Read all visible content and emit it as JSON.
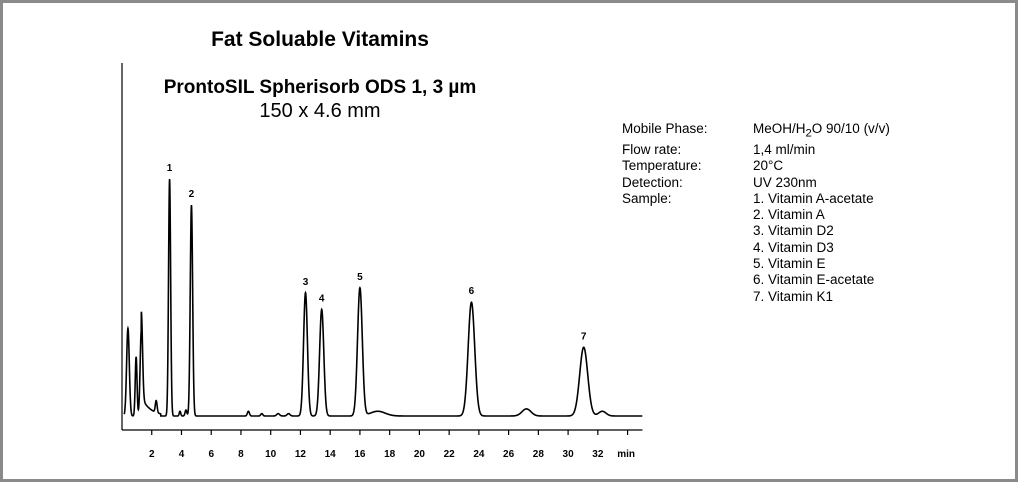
{
  "header": {
    "title": "Fat Soluable Vitamins",
    "column": "ProntoSIL Spherisorb ODS 1, 3 µm",
    "dimensions": "150 x 4.6 mm"
  },
  "conditions": [
    {
      "label": "Mobile Phase:",
      "value_html": "MeOH/H<sub>2</sub>O 90/10 (v/v)"
    },
    {
      "label": "Flow rate:",
      "value": "1,4 ml/min"
    },
    {
      "label": "Temperature:",
      "value": "20°C"
    },
    {
      "label": "Detection:",
      "value": "UV 230nm"
    },
    {
      "label": "Sample:",
      "value": "1. Vitamin A-acetate"
    },
    {
      "label": "",
      "value": "2. Vitamin A"
    },
    {
      "label": "",
      "value": "3. Vitamin D2"
    },
    {
      "label": "",
      "value": "4. Vitamin D3"
    },
    {
      "label": "",
      "value": "5. Vitamin E"
    },
    {
      "label": "",
      "value": "6. Vitamin E-acetate"
    },
    {
      "label": "",
      "value": "7. Vitamin K1"
    }
  ],
  "chart_data": {
    "type": "line",
    "title": "Fat Soluable Vitamins",
    "xlabel": "min",
    "ylabel": "",
    "xlim": [
      0,
      35
    ],
    "x_ticks": [
      2,
      4,
      6,
      8,
      10,
      12,
      14,
      16,
      18,
      20,
      22,
      24,
      26,
      28,
      30,
      32,
      34
    ],
    "x_tick_labels": [
      "2",
      "4",
      "6",
      "8",
      "10",
      "12",
      "14",
      "16",
      "18",
      "20",
      "22",
      "24",
      "26",
      "28",
      "30",
      "32",
      ""
    ],
    "y_axis_scale": "relative intensity (no labels)",
    "grid": false,
    "line_color": "#000000",
    "labeled_peaks": [
      {
        "label": "1",
        "retention_time": 3.2,
        "height": 100,
        "sigma": 0.07
      },
      {
        "label": "2",
        "retention_time": 4.67,
        "height": 89,
        "sigma": 0.08
      },
      {
        "label": "3",
        "retention_time": 12.34,
        "height": 52,
        "sigma": 0.13
      },
      {
        "label": "4",
        "retention_time": 13.43,
        "height": 45,
        "sigma": 0.14
      },
      {
        "label": "5",
        "retention_time": 16.0,
        "height": 54,
        "sigma": 0.16
      },
      {
        "label": "6",
        "retention_time": 23.5,
        "height": 48,
        "sigma": 0.22
      },
      {
        "label": "7",
        "retention_time": 31.05,
        "height": 29,
        "sigma": 0.27
      }
    ],
    "minor_peaks": [
      {
        "retention_time": 0.4,
        "height": 37,
        "sigma": 0.09
      },
      {
        "retention_time": 0.95,
        "height": 25,
        "sigma": 0.06
      },
      {
        "retention_time": 1.3,
        "height": 36,
        "sigma": 0.08
      },
      {
        "retention_time": 2.3,
        "height": 5,
        "sigma": 0.06
      },
      {
        "retention_time": 3.9,
        "height": 2,
        "sigma": 0.05
      },
      {
        "retention_time": 4.3,
        "height": 2.5,
        "sigma": 0.06
      },
      {
        "retention_time": 8.5,
        "height": 2,
        "sigma": 0.07
      },
      {
        "retention_time": 9.4,
        "height": 1,
        "sigma": 0.07
      },
      {
        "retention_time": 10.5,
        "height": 1,
        "sigma": 0.1
      },
      {
        "retention_time": 11.2,
        "height": 1,
        "sigma": 0.1
      },
      {
        "retention_time": 17.2,
        "height": 2,
        "sigma": 0.5
      },
      {
        "retention_time": 27.2,
        "height": 3,
        "sigma": 0.3
      },
      {
        "retention_time": 32.3,
        "height": 2,
        "sigma": 0.25
      }
    ]
  }
}
